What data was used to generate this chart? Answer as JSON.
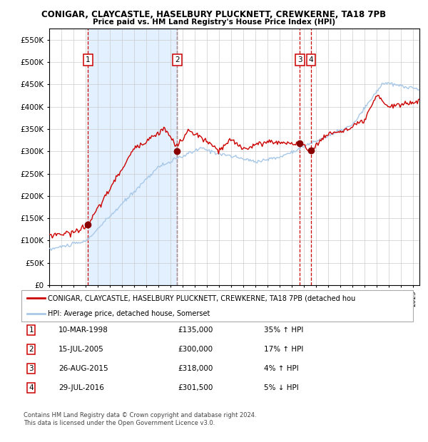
{
  "title1": "CONIGAR, CLAYCASTLE, HASELBURY PLUCKNETT, CREWKERNE, TA18 7PB",
  "title2": "Price paid vs. HM Land Registry's House Price Index (HPI)",
  "ylim": [
    0,
    575000
  ],
  "yticks": [
    0,
    50000,
    100000,
    150000,
    200000,
    250000,
    300000,
    350000,
    400000,
    450000,
    500000,
    550000
  ],
  "ytick_labels": [
    "£0",
    "£50K",
    "£100K",
    "£150K",
    "£200K",
    "£250K",
    "£300K",
    "£350K",
    "£400K",
    "£450K",
    "£500K",
    "£550K"
  ],
  "legend_line1": "CONIGAR, CLAYCASTLE, HASELBURY PLUCKNETT, CREWKERNE, TA18 7PB (detached hou",
  "legend_line2": "HPI: Average price, detached house, Somerset",
  "footer1": "Contains HM Land Registry data © Crown copyright and database right 2024.",
  "footer2": "This data is licensed under the Open Government Licence v3.0.",
  "transactions": [
    {
      "num": 1,
      "date": "10-MAR-1998",
      "price": 135000,
      "pct": "35%",
      "dir": "↑",
      "year": 1998.19
    },
    {
      "num": 2,
      "date": "15-JUL-2005",
      "price": 300000,
      "pct": "17%",
      "dir": "↑",
      "year": 2005.54
    },
    {
      "num": 3,
      "date": "26-AUG-2015",
      "price": 318000,
      "pct": "4%",
      "dir": "↑",
      "year": 2015.65
    },
    {
      "num": 4,
      "date": "29-JUL-2016",
      "price": 301500,
      "pct": "5%",
      "dir": "↓",
      "year": 2016.58
    }
  ],
  "red_line_color": "#cc0000",
  "blue_line_color": "#a8c8e8",
  "dot_color": "#880000",
  "shade_color": "#ddeeff",
  "box_color": "#cc0000",
  "grid_color": "#cccccc",
  "background_color": "#ffffff",
  "xstart": 1995,
  "xend": 2025.5
}
